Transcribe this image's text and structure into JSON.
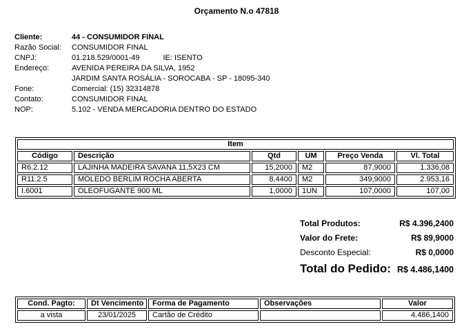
{
  "title": "Orçamento N.o 47818",
  "customer": {
    "rows": [
      {
        "label": "Cliente:",
        "value": "44 - CONSUMIDOR FINAL",
        "bold": true
      },
      {
        "label": "Razão Social:",
        "value": "CONSUMIDOR FINAL"
      },
      {
        "label": "CNPJ:",
        "value": "01.218.529/0001-49",
        "extra": "IE:  ISENTO"
      },
      {
        "label": "Endereço:",
        "value": "AVENIDA PEREIRA DA SILVA, 1952"
      },
      {
        "label": "",
        "value": "JARDIM SANTA ROSÁLIA - SOROCABA - SP - 18095-340"
      },
      {
        "label": "Fone:",
        "value": "Comercial: (15) 32314878"
      },
      {
        "label": "Contato:",
        "value": "CONSUMIDOR FINAL"
      },
      {
        "label": "NOP:",
        "value": "5.102 - VENDA MERCADORIA DENTRO DO ESTADO"
      }
    ]
  },
  "item_table": {
    "group_header": "Item",
    "columns": [
      "Código",
      "Descrição",
      "Qtd",
      "UM",
      "Preço Venda",
      "Vl. Total"
    ],
    "rows": [
      [
        "R6.2.12",
        "LAJINHA MADEIRA SAVANA 11,5X23 CM",
        "15,2000",
        "M2",
        "87,9000",
        "1.336,08"
      ],
      [
        "R11.2.5",
        "MOLEDO BERLIM ROCHA ABERTA",
        "8,4400",
        "M2",
        "349,9000",
        "2.953,16"
      ],
      [
        "I.6001",
        "OLEOFUGANTE 900 ML",
        "1,0000",
        "1UN",
        "107,0000",
        "107,00"
      ]
    ]
  },
  "totals": {
    "rows": [
      {
        "label": "Total Produtos:",
        "value": "R$ 4.396,2400",
        "style": "bold"
      },
      {
        "label": "Valor do Frete:",
        "value": "R$ 89,9000",
        "style": "bold"
      },
      {
        "label": "Desconto Especial:",
        "value": "R$ 0,0000",
        "style": "normal"
      },
      {
        "label": "Total do Pedido:",
        "value": "R$ 4.486,1400",
        "style": "grand"
      }
    ]
  },
  "payment_table": {
    "columns": [
      "Cond. Pagto:",
      "Dt Vencimento",
      "Forma de Pagamento",
      "Observações",
      "Valor"
    ],
    "rows": [
      [
        "a vista",
        "23/01/2025",
        "Cartão de Crédito",
        "",
        "4.486,1400"
      ]
    ]
  }
}
